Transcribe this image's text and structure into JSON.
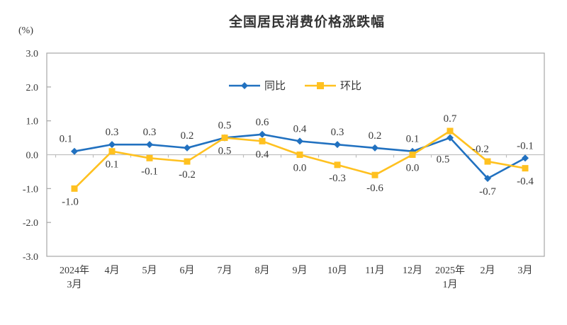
{
  "title": "全国居民消费价格涨跌幅",
  "y_unit_label": "(%)",
  "chart_data": {
    "type": "line",
    "title": "全国居民消费价格涨跌幅",
    "ylabel": "(%)",
    "categories": [
      [
        "2024年",
        "3月"
      ],
      [
        "4月"
      ],
      [
        "5月"
      ],
      [
        "6月"
      ],
      [
        "7月"
      ],
      [
        "8月"
      ],
      [
        "9月"
      ],
      [
        "10月"
      ],
      [
        "11月"
      ],
      [
        "12月"
      ],
      [
        "2025年",
        "1月"
      ],
      [
        "2月"
      ],
      [
        "3月"
      ]
    ],
    "series": [
      {
        "name": "同比",
        "color": "#2171C0",
        "marker": "diamond",
        "values": [
          0.1,
          0.3,
          0.3,
          0.2,
          0.5,
          0.6,
          0.4,
          0.3,
          0.2,
          0.1,
          0.5,
          -0.7,
          -0.1
        ],
        "label_side": [
          "above",
          "above",
          "above",
          "above",
          "above",
          "above",
          "above",
          "above",
          "above",
          "above",
          "below",
          "below",
          "above"
        ],
        "label_dx": [
          -12,
          0,
          0,
          0,
          0,
          0,
          0,
          0,
          0,
          0,
          -10,
          0,
          0
        ],
        "label_dy": [
          0,
          0,
          0,
          0,
          0,
          0,
          0,
          0,
          0,
          0,
          12,
          0,
          0
        ]
      },
      {
        "name": "环比",
        "color": "#FFC120",
        "marker": "square",
        "values": [
          -1.0,
          0.1,
          -0.1,
          -0.2,
          0.5,
          0.4,
          0.0,
          -0.3,
          -0.6,
          0.0,
          0.7,
          -0.2,
          -0.4
        ],
        "label_side": [
          "below",
          "below",
          "below",
          "below",
          "below",
          "below",
          "below",
          "below",
          "below",
          "below",
          "above",
          "above",
          "below"
        ],
        "label_dx": [
          -6,
          0,
          0,
          0,
          0,
          0,
          0,
          0,
          0,
          0,
          0,
          -10,
          0
        ],
        "label_dy": [
          0,
          0,
          0,
          0,
          0,
          0,
          0,
          0,
          0,
          0,
          0,
          0,
          0
        ]
      }
    ],
    "ylim": [
      -3.0,
      3.0
    ],
    "yticks": [
      3.0,
      2.0,
      1.0,
      0.0,
      -1.0,
      -2.0,
      -3.0
    ],
    "grid": false,
    "legend_position": "top-center-inside",
    "axis_color": "#A6A6A6",
    "zero_line_color": "#BFBFBF",
    "label_color": "#3A3A3A"
  }
}
